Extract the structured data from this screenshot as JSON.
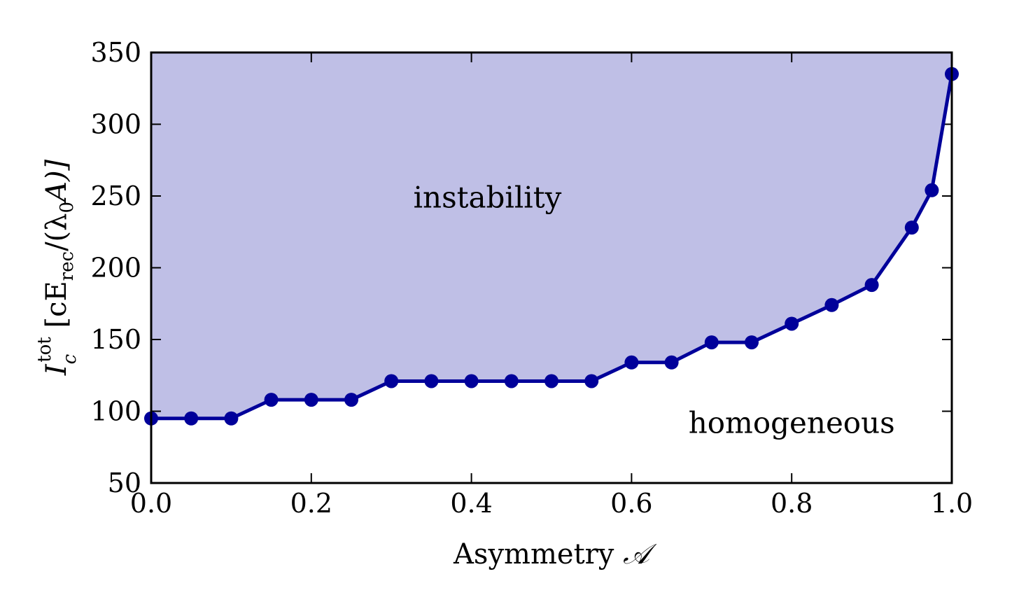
{
  "chart_data": {
    "type": "line",
    "title": "",
    "xlabel_text": "Asymmetry ",
    "xlabel_symbol": "𝒜",
    "ylabel_parts": {
      "I": "I",
      "sub_c": "c",
      "sup_tot": "tot",
      "open": " [cE",
      "sub_rec": "rec",
      "mid": "/(λ",
      "sub_0": "0",
      "close": "A)]"
    },
    "xlim": [
      0.0,
      1.0
    ],
    "ylim": [
      50,
      350
    ],
    "x_ticks": [
      0.0,
      0.2,
      0.4,
      0.6,
      0.8,
      1.0
    ],
    "x_tick_labels": [
      "0.0",
      "0.2",
      "0.4",
      "0.6",
      "0.8",
      "1.0"
    ],
    "y_ticks": [
      50,
      100,
      150,
      200,
      250,
      300,
      350
    ],
    "y_tick_labels": [
      "50",
      "100",
      "150",
      "200",
      "250",
      "300",
      "350"
    ],
    "grid": false,
    "series": [
      {
        "x": [
          0.0,
          0.05,
          0.1,
          0.15,
          0.2,
          0.25,
          0.3,
          0.35,
          0.4,
          0.45,
          0.5,
          0.55,
          0.6,
          0.65,
          0.7,
          0.75,
          0.8,
          0.85,
          0.9,
          0.95,
          0.975,
          1.0
        ],
        "values": [
          95,
          95,
          95,
          108,
          108,
          108,
          121,
          121,
          121,
          121,
          121,
          121,
          134,
          134,
          148,
          148,
          161,
          174,
          188,
          228,
          254,
          335
        ],
        "color": "#00009a"
      }
    ],
    "fill_color": "#bfbfe6",
    "annotations": [
      {
        "text": "instability",
        "x": 0.42,
        "y": 242
      },
      {
        "text": "homogeneous",
        "x": 0.8,
        "y": 85
      }
    ]
  }
}
